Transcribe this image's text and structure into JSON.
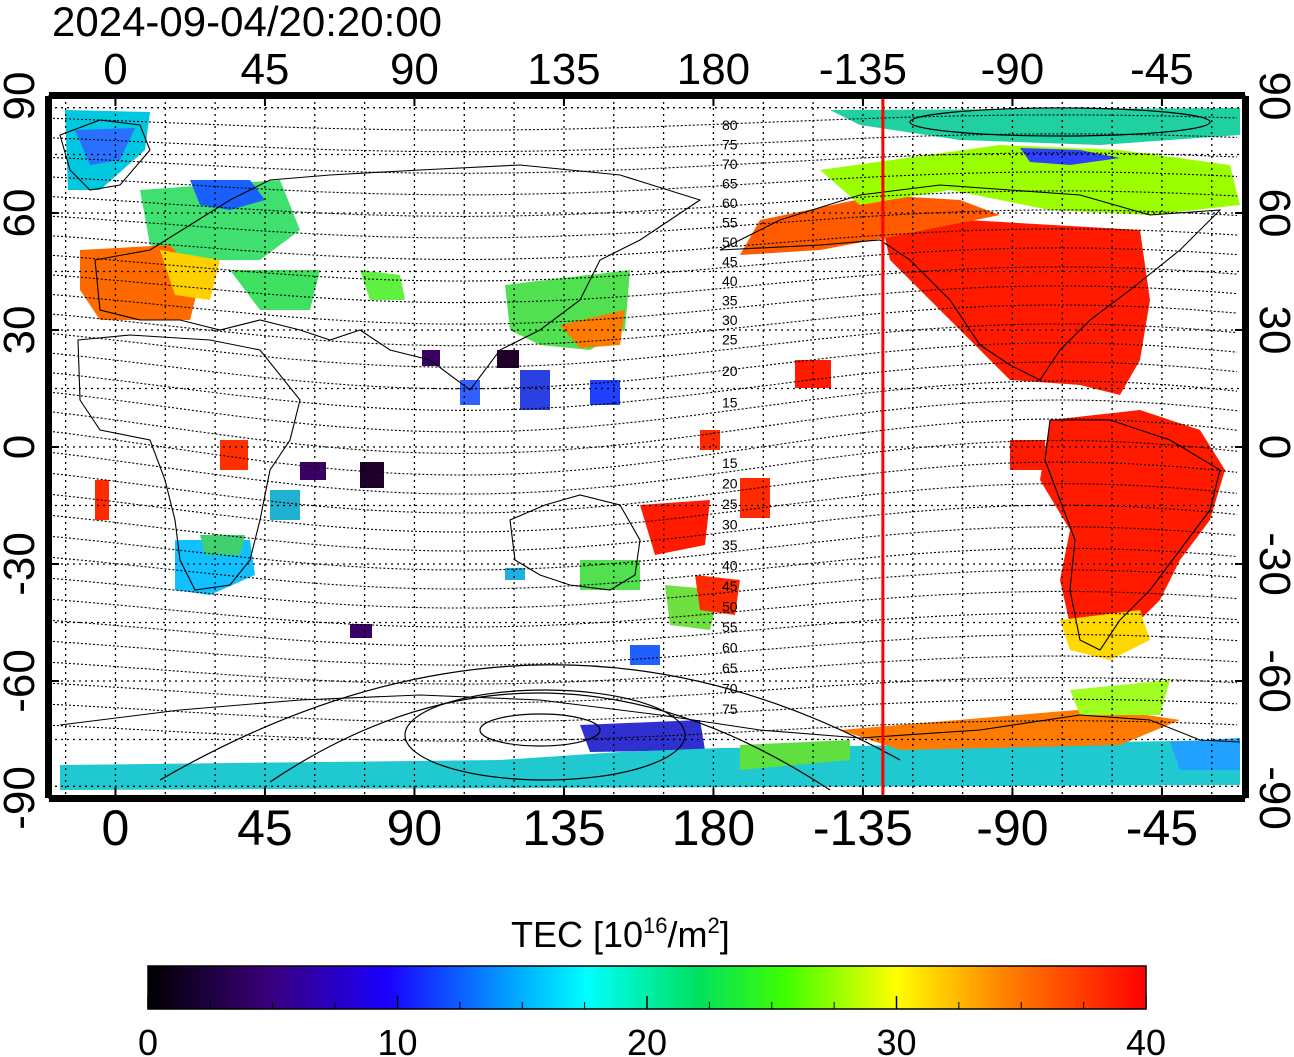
{
  "title": "2024-09-04/20:20:00",
  "map": {
    "top_lon_labels": [
      "0",
      "45",
      "90",
      "135",
      "180",
      "-135",
      "-90",
      "-45"
    ],
    "bottom_lon_labels": [
      "0",
      "45",
      "90",
      "135",
      "180",
      "-135",
      "-90",
      "-45"
    ],
    "left_lat_labels": [
      "90",
      "60",
      "30",
      "0",
      "-30",
      "-60",
      "-90"
    ],
    "right_lat_labels": [
      "90",
      "60",
      "30",
      "0",
      "-30",
      "-60",
      "-90"
    ],
    "lon_ticks_deg": [
      0,
      45,
      90,
      135,
      180,
      -135,
      -90,
      -45
    ],
    "lat_ticks_deg": [
      90,
      60,
      30,
      0,
      -30,
      -60,
      -90
    ],
    "lon_range": [
      -20,
      340
    ],
    "lat_range": [
      -90,
      90
    ],
    "terminator_lon_deg": -129,
    "terminator_color": "#ff0000",
    "north_contour_labels": [
      "80",
      "75",
      "70",
      "65",
      "60",
      "55",
      "50",
      "45",
      "40",
      "35",
      "30",
      "25",
      "20",
      "15"
    ],
    "south_contour_labels": [
      "15",
      "20",
      "25",
      "30",
      "35",
      "40",
      "45",
      "50",
      "55",
      "60",
      "65",
      "70",
      "75"
    ]
  },
  "colorbar": {
    "label_prefix": "TEC  [10",
    "label_exp": "16",
    "label_mid": "/m",
    "label_exp2": "2",
    "label_suffix": "]",
    "ticks": [
      "0",
      "10",
      "20",
      "30",
      "40"
    ],
    "min": 0,
    "max": 40,
    "colors": [
      "#000000",
      "#3a007a",
      "#1a00ff",
      "#00aaff",
      "#00ffff",
      "#00e060",
      "#40ff00",
      "#ffff00",
      "#ff8000",
      "#ff0000"
    ]
  }
}
